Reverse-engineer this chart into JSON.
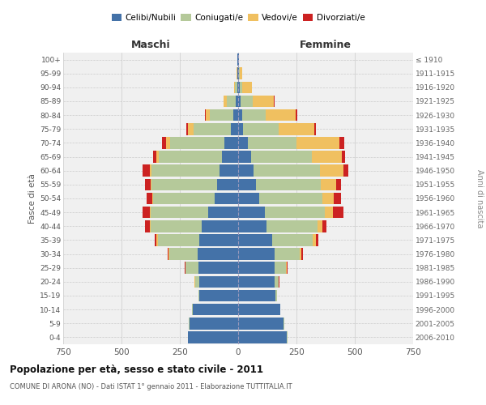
{
  "age_groups": [
    "0-4",
    "5-9",
    "10-14",
    "15-19",
    "20-24",
    "25-29",
    "30-34",
    "35-39",
    "40-44",
    "45-49",
    "50-54",
    "55-59",
    "60-64",
    "65-69",
    "70-74",
    "75-79",
    "80-84",
    "85-89",
    "90-94",
    "95-99",
    "100+"
  ],
  "birth_years": [
    "2006-2010",
    "2001-2005",
    "1996-2000",
    "1991-1995",
    "1986-1990",
    "1981-1985",
    "1976-1980",
    "1971-1975",
    "1966-1970",
    "1961-1965",
    "1956-1960",
    "1951-1955",
    "1946-1950",
    "1941-1945",
    "1936-1940",
    "1931-1935",
    "1926-1930",
    "1921-1925",
    "1916-1920",
    "1911-1915",
    "≤ 1910"
  ],
  "males": {
    "celibi": [
      215,
      210,
      195,
      165,
      165,
      170,
      175,
      165,
      155,
      130,
      100,
      90,
      80,
      70,
      60,
      30,
      20,
      10,
      5,
      3,
      2
    ],
    "coniugati": [
      2,
      2,
      2,
      5,
      20,
      55,
      120,
      180,
      220,
      245,
      265,
      280,
      290,
      270,
      230,
      160,
      100,
      40,
      8,
      2,
      0
    ],
    "vedovi": [
      0,
      0,
      0,
      0,
      1,
      2,
      3,
      4,
      4,
      5,
      4,
      5,
      8,
      12,
      20,
      25,
      20,
      12,
      3,
      1,
      0
    ],
    "divorziati": [
      0,
      0,
      0,
      1,
      2,
      3,
      5,
      10,
      20,
      30,
      22,
      25,
      30,
      12,
      15,
      8,
      3,
      0,
      0,
      0,
      0
    ]
  },
  "females": {
    "nubili": [
      210,
      195,
      180,
      160,
      155,
      155,
      155,
      145,
      120,
      115,
      90,
      75,
      65,
      55,
      40,
      22,
      18,
      12,
      8,
      4,
      2
    ],
    "coniugate": [
      2,
      2,
      2,
      5,
      18,
      50,
      110,
      175,
      220,
      255,
      270,
      280,
      285,
      260,
      210,
      150,
      100,
      50,
      10,
      2,
      0
    ],
    "vedove": [
      0,
      0,
      0,
      1,
      2,
      3,
      5,
      12,
      20,
      35,
      50,
      65,
      100,
      130,
      185,
      155,
      130,
      90,
      40,
      10,
      2
    ],
    "divorziate": [
      0,
      0,
      0,
      1,
      2,
      4,
      8,
      12,
      20,
      45,
      30,
      22,
      22,
      12,
      20,
      8,
      5,
      3,
      2,
      0,
      0
    ]
  },
  "colors": {
    "celibi": "#4472a8",
    "coniugati": "#b5c99a",
    "vedovi": "#f0c060",
    "divorziati": "#cc2222"
  },
  "title": "Popolazione per età, sesso e stato civile - 2011",
  "subtitle": "COMUNE DI ARONA (NO) - Dati ISTAT 1° gennaio 2011 - Elaborazione TUTTITALIA.IT",
  "ylabel": "Fasce di età",
  "ylabel2": "Anni di nascita",
  "xlabel_left": "Maschi",
  "xlabel_right": "Femmine",
  "xlim": 750,
  "background_color": "#ffffff",
  "plot_bg": "#f0f0f0"
}
